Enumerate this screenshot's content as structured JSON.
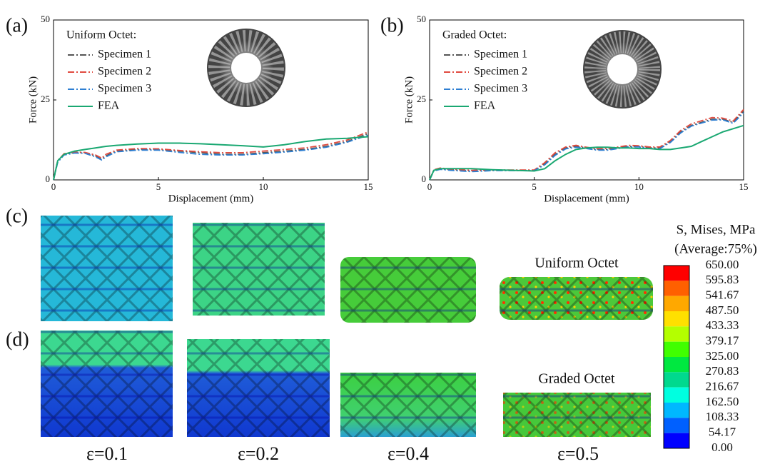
{
  "chart_data": [
    {
      "type": "line",
      "legend_title": "Uniform Octet:",
      "x_label": "Displacement (mm)",
      "y_label": "Force (kN)",
      "x": [
        0,
        0.2,
        0.5,
        1,
        1.5,
        2,
        2.3,
        2.5,
        3,
        4,
        5,
        6,
        7,
        8,
        9,
        10,
        11,
        12,
        13,
        14,
        15
      ],
      "series": [
        {
          "name": "Specimen 1",
          "color": "#555555",
          "values": [
            0,
            6,
            8,
            8.5,
            8.5,
            7.5,
            6.5,
            7.5,
            9,
            9.5,
            9.5,
            9,
            8.5,
            8,
            8,
            8.5,
            9,
            9.5,
            10.5,
            12,
            14.5
          ]
        },
        {
          "name": "Specimen 2",
          "color": "#e04a3f",
          "values": [
            0,
            6,
            8.2,
            8.7,
            8.6,
            7.8,
            6.8,
            8,
            9.3,
            9.8,
            9.7,
            9.2,
            8.8,
            8.5,
            8.5,
            9,
            9.5,
            10,
            11,
            12.5,
            15
          ]
        },
        {
          "name": "Specimen 3",
          "color": "#2e7fd2",
          "values": [
            0,
            5.5,
            7.8,
            8.4,
            8.3,
            7.2,
            6.2,
            7.2,
            8.8,
            9.3,
            9.3,
            8.6,
            8,
            7.8,
            7.8,
            8.2,
            8.7,
            9.3,
            10.2,
            11.8,
            14
          ]
        },
        {
          "name": "FEA",
          "color": "#1aa872",
          "values": [
            0,
            6,
            8,
            9,
            9.5,
            10,
            10.3,
            10.5,
            10.8,
            11.2,
            11.5,
            11.5,
            11.3,
            11,
            10.7,
            10.3,
            11,
            12,
            12.8,
            13,
            13.5
          ]
        }
      ],
      "xlim": [
        0,
        15
      ],
      "ylim": [
        0,
        50
      ],
      "xticks": [
        0,
        5,
        10,
        15
      ],
      "yticks": [
        0,
        25,
        50
      ]
    },
    {
      "type": "line",
      "legend_title": "Graded Octet:",
      "x_label": "Displacement (mm)",
      "y_label": "Force (kN)",
      "x": [
        0,
        0.2,
        0.5,
        1,
        2,
        3,
        4,
        5,
        5.5,
        6,
        6.5,
        7,
        7.5,
        8,
        8.5,
        9,
        9.5,
        10,
        10.5,
        11,
        11.5,
        12,
        12.5,
        13,
        13.5,
        14,
        14.5,
        15
      ],
      "series": [
        {
          "name": "Specimen 1",
          "color": "#555555",
          "values": [
            0,
            3,
            3.5,
            3.2,
            2.8,
            3,
            3,
            3,
            5,
            8,
            10,
            10.5,
            10,
            9.5,
            9.5,
            10,
            10.5,
            10.5,
            10,
            10,
            12,
            15,
            17,
            18,
            19,
            19,
            18,
            21.5
          ]
        },
        {
          "name": "Specimen 2",
          "color": "#e04a3f",
          "values": [
            0,
            3.2,
            3.7,
            3.4,
            3,
            3.1,
            3.1,
            3.1,
            5.4,
            8.5,
            10.3,
            10.8,
            10.2,
            9.8,
            9.8,
            10.3,
            10.8,
            10.7,
            10.3,
            10.3,
            12.3,
            15.5,
            17.5,
            18.5,
            19.5,
            19.3,
            18.4,
            22
          ]
        },
        {
          "name": "Specimen 3",
          "color": "#2e7fd2",
          "values": [
            0,
            2.8,
            3.3,
            3,
            2.6,
            2.9,
            2.9,
            2.9,
            4.7,
            7.7,
            9.7,
            10.2,
            9.8,
            9.3,
            9.3,
            9.8,
            10.3,
            10.3,
            9.8,
            9.8,
            11.7,
            14.7,
            16.8,
            17.8,
            18.7,
            18.8,
            17.7,
            21
          ]
        },
        {
          "name": "FEA",
          "color": "#1aa872",
          "values": [
            0,
            3,
            3.5,
            3.5,
            3.5,
            3.2,
            3,
            2.8,
            3.5,
            6,
            8,
            9.5,
            10,
            10.2,
            10.2,
            10,
            10,
            9.8,
            9.8,
            9.5,
            9.5,
            10,
            10.5,
            12,
            13.5,
            15,
            16,
            17
          ]
        }
      ],
      "xlim": [
        0,
        15
      ],
      "ylim": [
        0,
        50
      ],
      "xticks": [
        0,
        5,
        10,
        15
      ],
      "yticks": [
        0,
        25,
        50
      ]
    }
  ],
  "panel_labels": [
    "(a)",
    "(b)",
    "(c)",
    "(d)"
  ],
  "row_labels": [
    "Uniform Octet",
    "Graded Octet"
  ],
  "strain_labels": [
    "ε=0.1",
    "ε=0.2",
    "ε=0.4",
    "ε=0.5"
  ],
  "colorbar": {
    "title": "S, Mises, MPa",
    "subtitle": "(Average:75%)",
    "labels": [
      "650.00",
      "595.83",
      "541.67",
      "487.50",
      "433.33",
      "379.17",
      "325.00",
      "270.83",
      "216.67",
      "162.50",
      "108.33",
      "54.17",
      "0.00"
    ]
  }
}
